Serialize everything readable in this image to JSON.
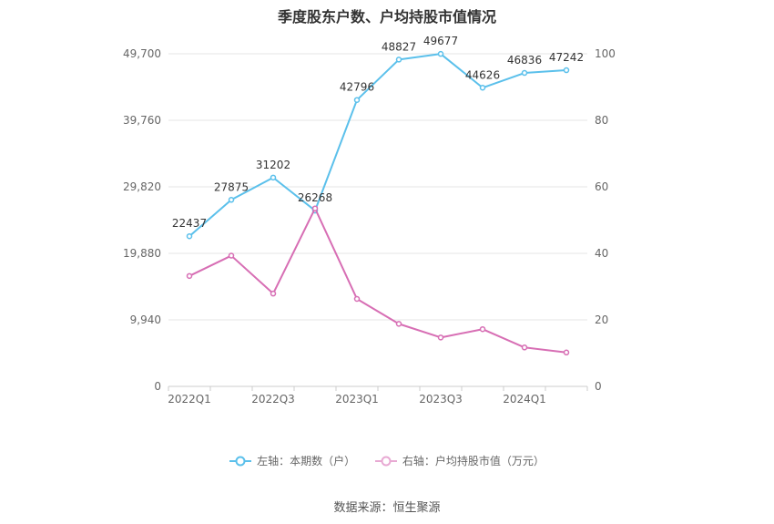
{
  "chart_data": {
    "type": "line",
    "title": "季度股东户数、户均持股市值情况",
    "categories": [
      "2022Q1",
      "2022Q2",
      "2022Q3",
      "2022Q4",
      "2023Q1",
      "2023Q2",
      "2023Q3",
      "2023Q4",
      "2024Q1",
      "2024Q2"
    ],
    "x_tick_labels": [
      "2022Q1",
      "",
      "2022Q3",
      "",
      "2023Q1",
      "",
      "2023Q3",
      "",
      "2024Q1",
      ""
    ],
    "left_axis": {
      "ylim": [
        0,
        49700
      ],
      "ticks": [
        "0",
        "9,940",
        "19,880",
        "29,820",
        "39,760",
        "49,700"
      ]
    },
    "right_axis": {
      "ylim": [
        0,
        100
      ],
      "ticks": [
        "0",
        "20",
        "40",
        "60",
        "80",
        "100"
      ]
    },
    "series": [
      {
        "name": "左轴：本期数（户）",
        "axis": "left",
        "color": "#5bc0eb",
        "values": [
          22437,
          27875,
          31202,
          26268,
          42796,
          48827,
          49677,
          44626,
          46836,
          47242
        ],
        "labels": [
          "22437",
          "27875",
          "31202",
          "26268",
          "42796",
          "48827",
          "49677",
          "44626",
          "46836",
          "47242"
        ]
      },
      {
        "name": "右轴：户均持股市值（万元）",
        "axis": "right",
        "color": "#d76eb4",
        "values": [
          33.2,
          39.3,
          27.9,
          53.5,
          26.3,
          18.8,
          14.7,
          17.2,
          11.7,
          10.2
        ]
      }
    ],
    "legend_position": "bottom",
    "grid": true
  },
  "footer": {
    "source": "数据来源：恒生聚源"
  }
}
